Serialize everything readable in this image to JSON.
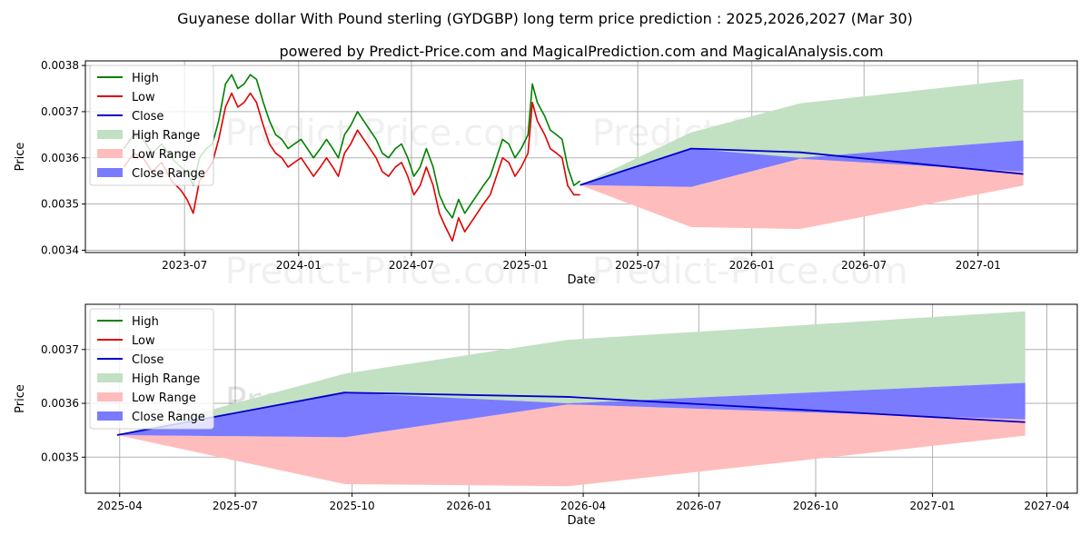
{
  "title": "Guyanese dollar With Pound sterling (GYDGBP) long term price prediction : 2025,2026,2027 (Mar 30)",
  "subtitle": "powered by Predict-Price.com and MagicalPrediction.com and MagicalAnalysis.com",
  "watermark": "Predict-Price.com",
  "colors": {
    "high": "#008000",
    "low": "#e00000",
    "close": "#0000cc",
    "high_range": "#c2e0c2",
    "low_range": "#ffbcbc",
    "close_range": "#7b7bff",
    "grid": "#b0b0b0"
  },
  "legend": {
    "high": "High",
    "low": "Low",
    "close": "Close",
    "high_range": "High Range",
    "low_range": "Low Range",
    "close_range": "Close Range"
  },
  "chart_data": [
    {
      "type": "line",
      "panel": "top",
      "xlabel": "Date",
      "ylabel": "Price",
      "xlim": [
        "2023-01-22",
        "2027-06-10"
      ],
      "ylim": [
        0.003395,
        0.00381
      ],
      "xticks": [
        {
          "date": "2023-07-01",
          "label": "2023-07"
        },
        {
          "date": "2024-01-01",
          "label": "2024-01"
        },
        {
          "date": "2024-07-01",
          "label": "2024-07"
        },
        {
          "date": "2025-01-01",
          "label": "2025-01"
        },
        {
          "date": "2025-07-01",
          "label": "2025-07"
        },
        {
          "date": "2026-01-01",
          "label": "2026-01"
        },
        {
          "date": "2026-07-01",
          "label": "2026-07"
        },
        {
          "date": "2027-01-01",
          "label": "2027-01"
        }
      ],
      "yticks": [
        {
          "value": 0.0034,
          "label": "0.0034"
        },
        {
          "value": 0.0035,
          "label": "0.0035"
        },
        {
          "value": 0.0036,
          "label": "0.0036"
        },
        {
          "value": 0.0037,
          "label": "0.0037"
        },
        {
          "value": 0.0038,
          "label": "0.0038"
        }
      ],
      "history": {
        "dates": [
          "2023-03-25",
          "2023-04-10",
          "2023-04-25",
          "2023-05-10",
          "2023-05-25",
          "2023-06-10",
          "2023-06-25",
          "2023-07-05",
          "2023-07-15",
          "2023-07-25",
          "2023-08-05",
          "2023-08-15",
          "2023-08-25",
          "2023-09-05",
          "2023-09-15",
          "2023-09-25",
          "2023-10-05",
          "2023-10-15",
          "2023-10-25",
          "2023-11-05",
          "2023-11-15",
          "2023-11-25",
          "2023-12-05",
          "2023-12-15",
          "2023-12-25",
          "2024-01-05",
          "2024-01-15",
          "2024-01-25",
          "2024-02-05",
          "2024-02-15",
          "2024-02-25",
          "2024-03-05",
          "2024-03-15",
          "2024-03-25",
          "2024-04-05",
          "2024-04-15",
          "2024-04-25",
          "2024-05-05",
          "2024-05-15",
          "2024-05-25",
          "2024-06-05",
          "2024-06-15",
          "2024-06-25",
          "2024-07-05",
          "2024-07-15",
          "2024-07-25",
          "2024-08-05",
          "2024-08-15",
          "2024-08-25",
          "2024-09-05",
          "2024-09-15",
          "2024-09-25",
          "2024-10-05",
          "2024-10-15",
          "2024-10-25",
          "2024-11-05",
          "2024-11-15",
          "2024-11-25",
          "2024-12-05",
          "2024-12-15",
          "2024-12-25",
          "2025-01-05",
          "2025-01-12",
          "2025-01-20",
          "2025-02-01",
          "2025-02-10",
          "2025-02-20",
          "2025-03-01",
          "2025-03-10",
          "2025-03-20",
          "2025-03-30"
        ],
        "high": [
          0.00362,
          0.00365,
          0.00364,
          0.00361,
          0.00363,
          0.0036,
          0.00358,
          0.00357,
          0.00354,
          0.0036,
          0.00362,
          0.00363,
          0.00368,
          0.00376,
          0.00378,
          0.00375,
          0.00376,
          0.00378,
          0.00377,
          0.00372,
          0.00368,
          0.00365,
          0.00364,
          0.00362,
          0.00363,
          0.00364,
          0.00362,
          0.0036,
          0.00362,
          0.00364,
          0.00362,
          0.0036,
          0.00365,
          0.00367,
          0.0037,
          0.00368,
          0.00366,
          0.00364,
          0.00361,
          0.0036,
          0.00362,
          0.00363,
          0.0036,
          0.00356,
          0.00358,
          0.00362,
          0.00358,
          0.00352,
          0.00349,
          0.00347,
          0.00351,
          0.00348,
          0.0035,
          0.00352,
          0.00354,
          0.00356,
          0.0036,
          0.00364,
          0.00363,
          0.0036,
          0.00362,
          0.00365,
          0.00376,
          0.00372,
          0.00369,
          0.00366,
          0.00365,
          0.00364,
          0.00358,
          0.00354,
          0.00355
        ],
        "low": [
          0.00358,
          0.00361,
          0.0036,
          0.00357,
          0.00359,
          0.00355,
          0.00353,
          0.00351,
          0.00348,
          0.00355,
          0.00357,
          0.00359,
          0.00364,
          0.00371,
          0.00374,
          0.00371,
          0.00372,
          0.00374,
          0.00372,
          0.00367,
          0.00363,
          0.00361,
          0.0036,
          0.00358,
          0.00359,
          0.0036,
          0.00358,
          0.00356,
          0.00358,
          0.0036,
          0.00358,
          0.00356,
          0.00361,
          0.00363,
          0.00366,
          0.00364,
          0.00362,
          0.0036,
          0.00357,
          0.00356,
          0.00358,
          0.00359,
          0.00356,
          0.00352,
          0.00354,
          0.00358,
          0.00354,
          0.00348,
          0.00345,
          0.00342,
          0.00347,
          0.00344,
          0.00346,
          0.00348,
          0.0035,
          0.00352,
          0.00356,
          0.0036,
          0.00359,
          0.00356,
          0.00358,
          0.00361,
          0.00372,
          0.00368,
          0.00365,
          0.00362,
          0.00361,
          0.0036,
          0.00354,
          0.00352,
          0.00352
        ]
      },
      "forecast": {
        "dates": [
          "2025-03-30",
          "2025-09-25",
          "2026-03-20",
          "2027-03-15"
        ],
        "close": [
          0.003541,
          0.00362,
          0.003612,
          0.003565
        ],
        "high_range_upper": [
          0.003541,
          0.003655,
          0.003718,
          0.003771
        ],
        "low_range_lower": [
          0.003541,
          0.00345,
          0.003446,
          0.00354
        ],
        "close_range_upper": [
          0.003541,
          0.00362,
          0.0036,
          0.003638
        ],
        "close_range_lower": [
          0.003541,
          0.003537,
          0.003598,
          0.00357
        ]
      }
    },
    {
      "type": "line",
      "panel": "bottom",
      "xlabel": "Date",
      "ylabel": "Price",
      "xlim": [
        "2025-03-05",
        "2027-04-25"
      ],
      "ylim": [
        0.003433,
        0.003784
      ],
      "xticks": [
        {
          "date": "2025-04-01",
          "label": "2025-04"
        },
        {
          "date": "2025-07-01",
          "label": "2025-07"
        },
        {
          "date": "2025-10-01",
          "label": "2025-10"
        },
        {
          "date": "2026-01-01",
          "label": "2026-01"
        },
        {
          "date": "2026-04-01",
          "label": "2026-04"
        },
        {
          "date": "2026-07-01",
          "label": "2026-07"
        },
        {
          "date": "2026-10-01",
          "label": "2026-10"
        },
        {
          "date": "2027-01-01",
          "label": "2027-01"
        },
        {
          "date": "2027-04-01",
          "label": "2027-04"
        }
      ],
      "yticks": [
        {
          "value": 0.0035,
          "label": "0.0035"
        },
        {
          "value": 0.0036,
          "label": "0.0036"
        },
        {
          "value": 0.0037,
          "label": "0.0037"
        }
      ],
      "forecast": {
        "dates": [
          "2025-03-30",
          "2025-09-25",
          "2026-03-20",
          "2027-03-15"
        ],
        "close": [
          0.003541,
          0.00362,
          0.003612,
          0.003565
        ],
        "high_range_upper": [
          0.003541,
          0.003655,
          0.003718,
          0.003771
        ],
        "low_range_lower": [
          0.003541,
          0.00345,
          0.003446,
          0.00354
        ],
        "close_range_upper": [
          0.003541,
          0.00362,
          0.0036,
          0.003638
        ],
        "close_range_lower": [
          0.003541,
          0.003537,
          0.003598,
          0.00357
        ]
      }
    }
  ]
}
